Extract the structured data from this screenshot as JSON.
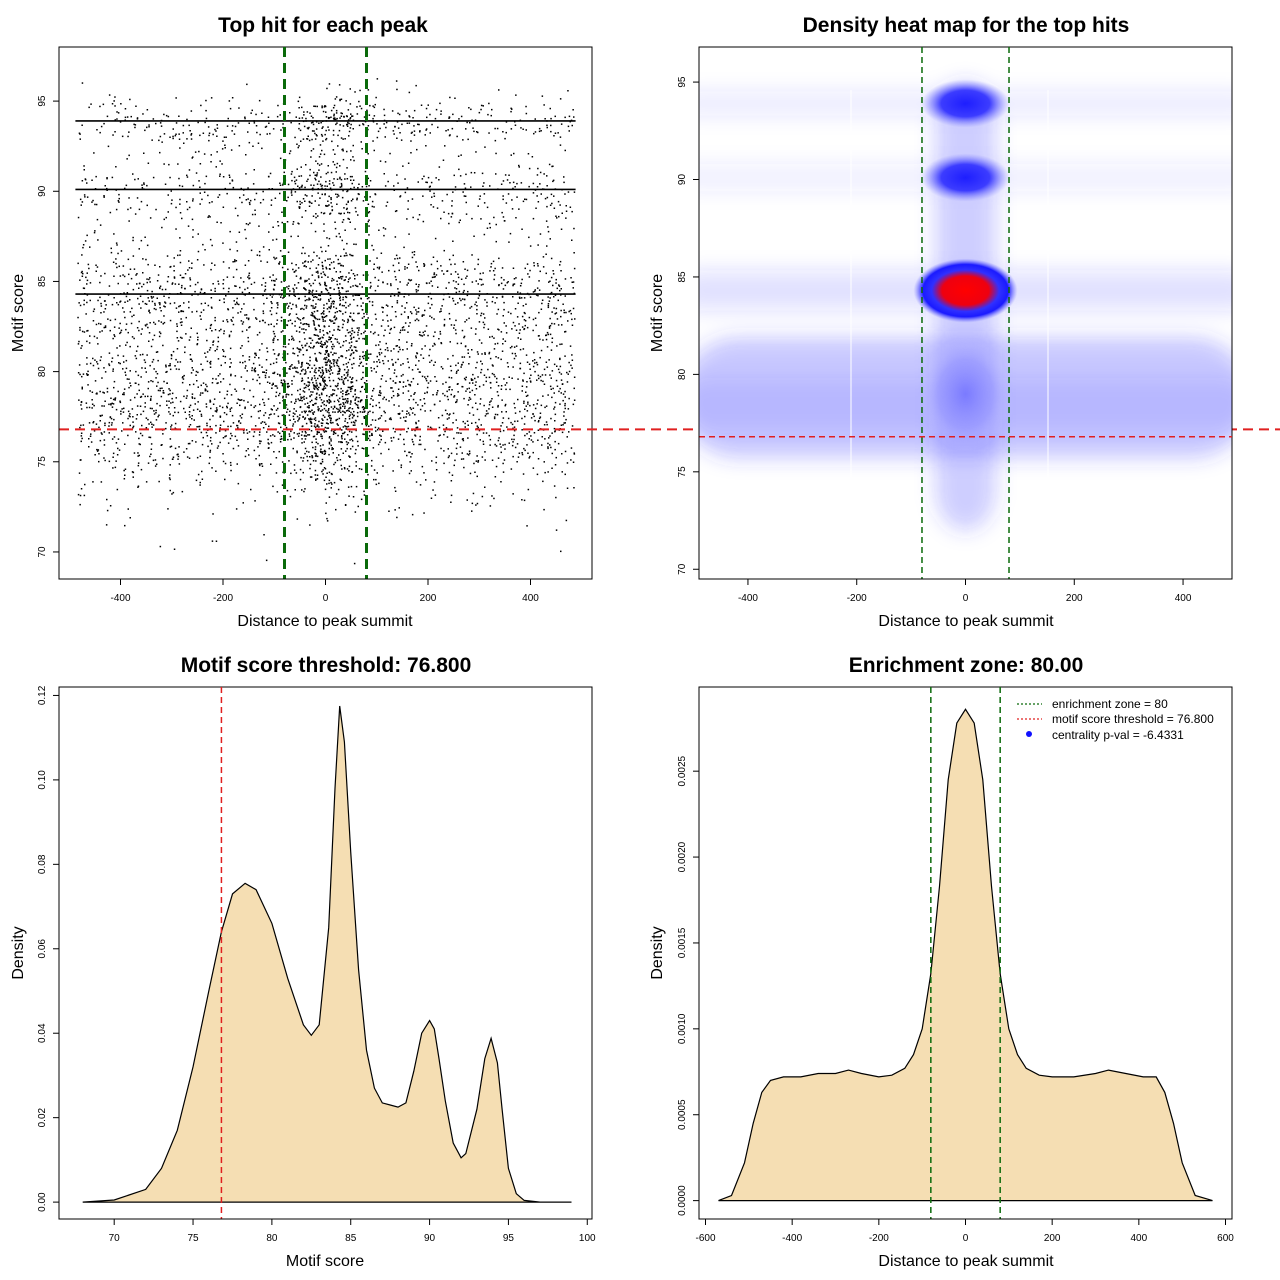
{
  "colors": {
    "threshold": "#e02020",
    "zone": "#0a6a0a",
    "density_fill": "#f5deb3",
    "heat_low": "#ffffff",
    "heat_mid": "#3a3aff",
    "heat_high": "#ff0000",
    "points": "#000000",
    "legend_dot": "#1010ff"
  },
  "chart_data": [
    {
      "type": "scatter",
      "title": "Top hit for each peak",
      "xlabel": "Distance to peak summit",
      "ylabel": "Motif score",
      "xlim": [
        -520,
        520
      ],
      "ylim": [
        68.5,
        98
      ],
      "xticks": [
        -400,
        -200,
        0,
        200,
        400
      ],
      "yticks": [
        70,
        75,
        80,
        85,
        90,
        95
      ],
      "threshold_y": 76.8,
      "zone_x": [
        -80,
        80
      ],
      "dense_score_rows": [
        93.9,
        90.1,
        84.3
      ]
    },
    {
      "type": "heatmap",
      "title": "Density heat map for the top hits",
      "xlabel": "Distance to peak summit",
      "ylabel": "Motif score",
      "xlim": [
        -490,
        490
      ],
      "ylim": [
        69.5,
        96.8
      ],
      "xticks": [
        -400,
        -200,
        0,
        200,
        400
      ],
      "yticks": [
        70,
        75,
        80,
        85,
        90,
        95
      ],
      "threshold_y": 76.8,
      "zone_x": [
        -80,
        80
      ],
      "hotspots": [
        {
          "x": 0,
          "y": 84.3,
          "level": "peak"
        },
        {
          "x": 0,
          "y": 90.1,
          "level": "high"
        },
        {
          "x": 0,
          "y": 93.9,
          "level": "high"
        },
        {
          "x": 0,
          "y": 79,
          "level": "medium"
        }
      ]
    },
    {
      "type": "area",
      "title": "Motif score threshold: 76.800",
      "xlabel": "Motif score",
      "ylabel": "Density",
      "xlim": [
        66.5,
        100.3
      ],
      "ylim": [
        -0.004,
        0.122
      ],
      "xticks": [
        70,
        75,
        80,
        85,
        90,
        95,
        100
      ],
      "yticks": [
        0.0,
        0.02,
        0.04,
        0.06,
        0.08,
        0.1,
        0.12
      ],
      "ytick_labels": [
        "0.00",
        "0.02",
        "0.04",
        "0.06",
        "0.08",
        "0.10",
        "0.12"
      ],
      "threshold_x": 76.8,
      "x": [
        68,
        70,
        72,
        73,
        74,
        75,
        76,
        76.8,
        77.5,
        78.3,
        79,
        80,
        81,
        82,
        82.5,
        83,
        83.6,
        84,
        84.3,
        84.6,
        85,
        85.5,
        86,
        86.5,
        87,
        87.5,
        88,
        88.5,
        89,
        89.5,
        90,
        90.3,
        90.6,
        91,
        91.5,
        92,
        92.3,
        93,
        93.5,
        93.9,
        94.3,
        94.6,
        95,
        95.5,
        96,
        97,
        99
      ],
      "y": [
        0.0,
        0.0005,
        0.003,
        0.008,
        0.017,
        0.032,
        0.05,
        0.064,
        0.073,
        0.0755,
        0.074,
        0.066,
        0.053,
        0.042,
        0.0395,
        0.042,
        0.065,
        0.098,
        0.1175,
        0.109,
        0.083,
        0.055,
        0.036,
        0.027,
        0.0235,
        0.023,
        0.0225,
        0.0235,
        0.031,
        0.04,
        0.043,
        0.041,
        0.034,
        0.024,
        0.014,
        0.0105,
        0.0115,
        0.022,
        0.034,
        0.0388,
        0.033,
        0.022,
        0.008,
        0.002,
        0.0004,
        0.0,
        0.0
      ]
    },
    {
      "type": "area",
      "title": "Enrichment zone: 80.00",
      "xlabel": "Distance to peak summit",
      "ylabel": "Density",
      "xlim": [
        -615,
        615
      ],
      "ylim": [
        -0.000107,
        0.00299
      ],
      "xticks": [
        -600,
        -400,
        -200,
        0,
        200,
        400,
        600
      ],
      "yticks": [
        0.0,
        0.0005,
        0.001,
        0.0015,
        0.002,
        0.0025
      ],
      "ytick_labels": [
        "0.0000",
        "0.0005",
        "0.0010",
        "0.0015",
        "0.0020",
        "0.0025"
      ],
      "zone_x": [
        -80,
        80
      ],
      "x": [
        -570,
        -540,
        -510,
        -490,
        -470,
        -450,
        -420,
        -380,
        -340,
        -300,
        -270,
        -240,
        -200,
        -170,
        -140,
        -120,
        -100,
        -80,
        -60,
        -40,
        -20,
        0,
        20,
        40,
        60,
        80,
        100,
        120,
        140,
        170,
        200,
        250,
        300,
        330,
        370,
        410,
        440,
        460,
        480,
        500,
        530,
        570
      ],
      "y": [
        0.0,
        3e-05,
        0.00022,
        0.00045,
        0.00063,
        0.0007,
        0.00072,
        0.00072,
        0.00074,
        0.00074,
        0.00076,
        0.00074,
        0.00072,
        0.00073,
        0.00077,
        0.00085,
        0.001,
        0.00132,
        0.00183,
        0.00245,
        0.00278,
        0.00286,
        0.00278,
        0.00245,
        0.00183,
        0.00132,
        0.001,
        0.00085,
        0.00077,
        0.00073,
        0.00072,
        0.00072,
        0.00074,
        0.00076,
        0.00074,
        0.00072,
        0.00072,
        0.00063,
        0.00045,
        0.00022,
        3e-05,
        0.0
      ],
      "legend": [
        {
          "label": "enrichment zone = 80",
          "style": "zone-line"
        },
        {
          "label": "motif score threshold = 76.800",
          "style": "threshold-line"
        },
        {
          "label": "centrality p-val = -6.4331",
          "style": "dot"
        }
      ]
    }
  ]
}
